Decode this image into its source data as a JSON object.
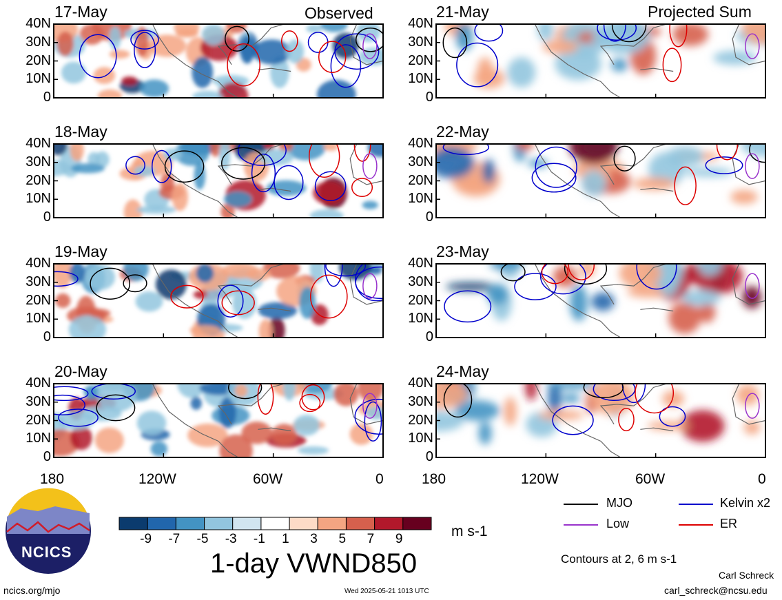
{
  "titles": {
    "observed": "Observed",
    "projected": "Projected Sum"
  },
  "panels": [
    {
      "date": "17-May",
      "column": "observed"
    },
    {
      "date": "18-May",
      "column": "observed"
    },
    {
      "date": "19-May",
      "column": "observed"
    },
    {
      "date": "20-May",
      "column": "observed"
    },
    {
      "date": "21-May",
      "column": "projected"
    },
    {
      "date": "22-May",
      "column": "projected"
    },
    {
      "date": "23-May",
      "column": "projected"
    },
    {
      "date": "24-May",
      "column": "projected"
    }
  ],
  "axes": {
    "y_ticks": [
      "40N",
      "30N",
      "20N",
      "10N",
      "0"
    ],
    "x_ticks": [
      "180",
      "120W",
      "60W",
      "0"
    ]
  },
  "colorbar": {
    "labels": [
      "-9",
      "-7",
      "-5",
      "-3",
      "-1",
      "1",
      "3",
      "5",
      "7",
      "9"
    ],
    "colors": [
      "#0b3b6e",
      "#2166ac",
      "#4393c3",
      "#92c5de",
      "#d1e5f0",
      "#ffffff",
      "#fddbc7",
      "#f4a582",
      "#d6604d",
      "#b2182b",
      "#67001f"
    ],
    "unit": "m s-1",
    "title": "1-day VWND850"
  },
  "legend": {
    "items": [
      {
        "label": "MJO",
        "color": "#000000"
      },
      {
        "label": "Kelvin x2",
        "color": "#0000cc"
      },
      {
        "label": "Low",
        "color": "#9933cc"
      },
      {
        "label": "ER",
        "color": "#dd0000"
      }
    ],
    "note": "Contours at 2, 6 m s-1"
  },
  "logo": {
    "text": "NCICS"
  },
  "footer": {
    "left": "ncics.org/mjo",
    "center": "Wed 2025-05-21 1013 UTC",
    "author": "Carl Schreck",
    "email": "carl_schreck@ncsu.edu"
  }
}
